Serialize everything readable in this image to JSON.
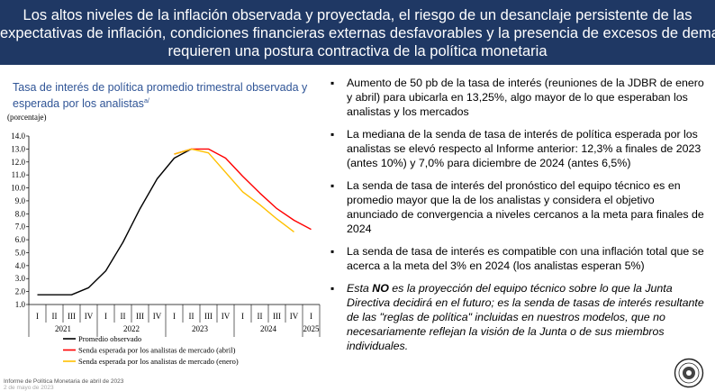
{
  "header": {
    "lines": [
      "Los altos niveles de la inflación observada y proyectada, el riesgo de un desanclaje persistente de las",
      "expectativas de inflación, condiciones financieras externas desfavorables y la presencia de excesos de demanda",
      "requieren una postura contractiva de la política monetaria"
    ]
  },
  "chart_data": {
    "type": "line",
    "title_line1": "Tasa de interés de política promedio trimestral observada y",
    "title_line2": "esperada por los analistas",
    "title_note": "a/",
    "ylabel": "(porcentaje)",
    "ylim": [
      1.0,
      14.0
    ],
    "yticks": [
      "14.0",
      "13.0",
      "12.0",
      "11.0",
      "10.0",
      "9.0",
      "8.0",
      "7.0",
      "6.0",
      "5.0",
      "4.0",
      "3.0",
      "2.0",
      "1.0"
    ],
    "quarters": [
      "I",
      "II",
      "III",
      "IV",
      "I",
      "II",
      "III",
      "IV",
      "I",
      "II",
      "III",
      "IV",
      "I",
      "II",
      "III",
      "IV",
      "I"
    ],
    "years": [
      {
        "label": "2021",
        "span": [
          0,
          3
        ]
      },
      {
        "label": "2022",
        "span": [
          4,
          7
        ]
      },
      {
        "label": "2023",
        "span": [
          8,
          11
        ]
      },
      {
        "label": "2024",
        "span": [
          12,
          15
        ]
      },
      {
        "label": "2025",
        "span": [
          16,
          16
        ]
      }
    ],
    "series": [
      {
        "name": "Promedio observado",
        "color": "#000000",
        "points": [
          [
            0,
            1.75
          ],
          [
            1,
            1.75
          ],
          [
            2,
            1.75
          ],
          [
            3,
            2.3
          ],
          [
            4,
            3.6
          ],
          [
            5,
            5.8
          ],
          [
            6,
            8.4
          ],
          [
            7,
            10.7
          ],
          [
            8,
            12.3
          ],
          [
            9,
            13.0
          ]
        ]
      },
      {
        "name": "Senda esperada por los analistas de mercado (abril)",
        "color": "#ff0000",
        "points": [
          [
            8,
            12.6
          ],
          [
            9,
            13.0
          ],
          [
            10,
            13.0
          ],
          [
            11,
            12.3
          ],
          [
            12,
            10.9
          ],
          [
            13,
            9.6
          ],
          [
            14,
            8.4
          ],
          [
            15,
            7.5
          ],
          [
            16,
            6.8
          ]
        ]
      },
      {
        "name": "Senda esperada por los analistas de mercado (enero)",
        "color": "#ffc000",
        "points": [
          [
            8,
            12.6
          ],
          [
            9,
            13.0
          ],
          [
            10,
            12.7
          ],
          [
            11,
            11.2
          ],
          [
            12,
            9.7
          ],
          [
            13,
            8.7
          ],
          [
            14,
            7.6
          ],
          [
            15,
            6.6
          ]
        ]
      }
    ],
    "grid": false,
    "legend_position": "bottom"
  },
  "bullets": [
    {
      "mark": "▪",
      "text": "Aumento de 50 pb de la tasa de interés (reuniones de la JDBR de enero y abril) para ubicarla en 13,25%, algo mayor de lo que esperaban los analistas y los mercados"
    },
    {
      "mark": "▪",
      "text": "La mediana de la senda de tasa de interés de política esperada por los analistas se elevó respecto al Informe anterior: 12,3% a finales de 2023 (antes 10%) y 7,0% para diciembre de 2024 (antes 6,5%)"
    },
    {
      "mark": "▪",
      "text": "La senda de tasa de interés del pronóstico del equipo técnico es en promedio mayor que la de los analistas y considera el objetivo anunciado de convergencia a niveles cercanos a la meta para finales de 2024"
    },
    {
      "mark": "▪",
      "text": "La senda de tasa de interés es compatible con una inflación total que se acerca a la meta del 3% en 2024 (los analistas esperan 5%)"
    }
  ],
  "note": {
    "mark": "▪",
    "pre": "Esta ",
    "strong": "NO",
    "post": " es la proyección del equipo técnico sobre lo que la Junta Directiva decidirá en el futuro; es la senda de tasas de interés resultante de las \"reglas de política\" incluidas en nuestros modelos, que no necesariamente reflejan la visión de la Junta o de sus miembros individuales."
  },
  "footer": {
    "line1": "Informe de Política Monetaria de abril de 2023",
    "line2": "2 de mayo de 2023"
  },
  "colors": {
    "header_bg": "#1f3864",
    "title": "#2f5496"
  }
}
